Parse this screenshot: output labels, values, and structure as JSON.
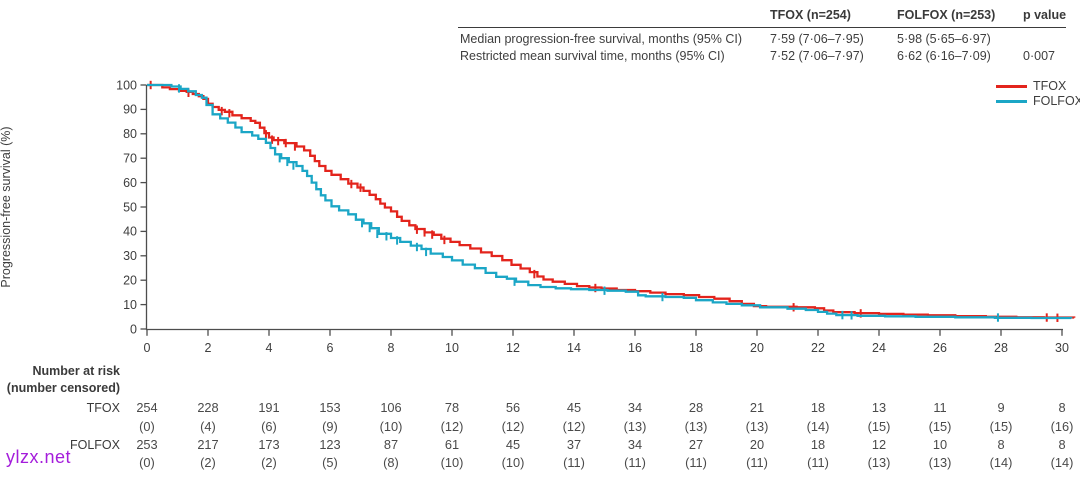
{
  "watermark": "ylzx.net",
  "colors": {
    "tfox": "#e3241c",
    "folfox": "#1ba6c6",
    "axis": "#4d4d4d",
    "text": "#3e3e3e",
    "watermark": "#a41ddb"
  },
  "stats_table": {
    "col_tfox": "TFOX (n=254)",
    "col_folfox": "FOLFOX (n=253)",
    "col_p": "p value",
    "rows": [
      {
        "label": "Median progression-free survival, months (95% CI)",
        "tfox": "7·59 (7·06–7·95)",
        "folfox": "5·98 (5·65–6·97)",
        "p": ""
      },
      {
        "label": "Restricted mean survival time, months (95% CI)",
        "tfox": "7·52 (7·06–7·97)",
        "folfox": "6·62 (6·16–7·09)",
        "p": "0·007"
      }
    ]
  },
  "legend": {
    "tfox_label": "TFOX",
    "folfox_label": "FOLFOX"
  },
  "chart_data": {
    "type": "line",
    "subtype": "kaplan-meier-step",
    "title": "",
    "xlabel": "",
    "ylabel": "Progression-free survival (%)",
    "xlim": [
      0,
      30
    ],
    "ylim": [
      0,
      100
    ],
    "x_ticks": [
      0,
      2,
      4,
      6,
      8,
      10,
      12,
      14,
      16,
      18,
      20,
      22,
      24,
      26,
      28,
      30
    ],
    "y_ticks": [
      0,
      10,
      20,
      30,
      40,
      50,
      60,
      70,
      80,
      90,
      100
    ],
    "grid": false,
    "legend_position": "top-right",
    "series": [
      {
        "name": "TFOX",
        "color": "#e3241c",
        "points": [
          [
            0,
            100
          ],
          [
            0.5,
            99
          ],
          [
            0.75,
            98.3
          ],
          [
            1.05,
            97.6
          ],
          [
            1.3,
            97.2
          ],
          [
            1.5,
            96.3
          ],
          [
            1.7,
            95.4
          ],
          [
            1.85,
            94.3
          ],
          [
            2.0,
            92.3
          ],
          [
            2.15,
            91
          ],
          [
            2.35,
            89.8
          ],
          [
            2.55,
            89
          ],
          [
            2.8,
            87.6
          ],
          [
            3.1,
            86.4
          ],
          [
            3.4,
            85.3
          ],
          [
            3.55,
            84.5
          ],
          [
            3.7,
            82.5
          ],
          [
            3.85,
            80.3
          ],
          [
            4.0,
            78.5
          ],
          [
            4.15,
            77.4
          ],
          [
            4.5,
            76.2
          ],
          [
            4.9,
            74.8
          ],
          [
            5.15,
            73.2
          ],
          [
            5.35,
            71
          ],
          [
            5.5,
            68.8
          ],
          [
            5.65,
            66.8
          ],
          [
            5.85,
            64.8
          ],
          [
            6.05,
            63.2
          ],
          [
            6.35,
            61.4
          ],
          [
            6.6,
            59.6
          ],
          [
            6.9,
            58
          ],
          [
            7.1,
            56.6
          ],
          [
            7.3,
            55
          ],
          [
            7.5,
            53.2
          ],
          [
            7.65,
            51.4
          ],
          [
            7.8,
            49.8
          ],
          [
            8.0,
            48.2
          ],
          [
            8.2,
            46
          ],
          [
            8.35,
            44.3
          ],
          [
            8.6,
            42.5
          ],
          [
            8.8,
            41
          ],
          [
            9.1,
            39.6
          ],
          [
            9.4,
            38.6
          ],
          [
            9.65,
            37
          ],
          [
            9.95,
            35.7
          ],
          [
            10.25,
            34.4
          ],
          [
            10.6,
            33
          ],
          [
            10.95,
            31.4
          ],
          [
            11.3,
            29.9
          ],
          [
            11.65,
            28.2
          ],
          [
            11.95,
            26.3
          ],
          [
            12.25,
            24.8
          ],
          [
            12.55,
            23.3
          ],
          [
            12.8,
            21.5
          ],
          [
            13.0,
            20.3
          ],
          [
            13.3,
            19.4
          ],
          [
            13.7,
            18.5
          ],
          [
            14.1,
            17.6
          ],
          [
            14.5,
            17
          ],
          [
            14.9,
            16.6
          ],
          [
            15.4,
            16
          ],
          [
            16.0,
            15.5
          ],
          [
            16.5,
            14.9
          ],
          [
            17.0,
            14.3
          ],
          [
            17.6,
            13.9
          ],
          [
            18.1,
            13.1
          ],
          [
            18.6,
            12.4
          ],
          [
            19.1,
            11.4
          ],
          [
            19.5,
            10.3
          ],
          [
            19.9,
            9.4
          ],
          [
            20.3,
            9.1
          ],
          [
            21.3,
            8.9
          ],
          [
            21.9,
            8.5
          ],
          [
            22.2,
            7.6
          ],
          [
            22.5,
            6.9
          ],
          [
            23.2,
            6.5
          ],
          [
            24.0,
            6.2
          ],
          [
            24.8,
            5.9
          ],
          [
            25.6,
            5.6
          ],
          [
            26.5,
            5.3
          ],
          [
            27.5,
            5.0
          ],
          [
            28.5,
            4.8
          ],
          [
            29.4,
            4.7
          ],
          [
            30.4,
            4.6
          ]
        ],
        "censors": [
          [
            0.12,
            100
          ],
          [
            1.36,
            96.8
          ],
          [
            2.45,
            89.3
          ],
          [
            2.7,
            88.4
          ],
          [
            3.9,
            79.8
          ],
          [
            4.1,
            77.6
          ],
          [
            4.3,
            77
          ],
          [
            4.55,
            76.2
          ],
          [
            4.85,
            74.8
          ],
          [
            6.7,
            59.4
          ],
          [
            7.0,
            57.9
          ],
          [
            8.85,
            40.7
          ],
          [
            9.1,
            39.6
          ],
          [
            9.35,
            38.7
          ],
          [
            9.75,
            36.5
          ],
          [
            12.7,
            22.5
          ],
          [
            14.7,
            16.8
          ],
          [
            21.2,
            8.9
          ],
          [
            23.4,
            6.4
          ],
          [
            29.5,
            4.7
          ],
          [
            29.85,
            4.6
          ]
        ]
      },
      {
        "name": "FOLFOX",
        "color": "#1ba6c6",
        "points": [
          [
            0,
            100
          ],
          [
            0.8,
            99.4
          ],
          [
            1.1,
            98.4
          ],
          [
            1.35,
            97.4
          ],
          [
            1.6,
            95.9
          ],
          [
            1.8,
            94.8
          ],
          [
            1.95,
            91.8
          ],
          [
            2.15,
            88
          ],
          [
            2.4,
            86.3
          ],
          [
            2.65,
            84.6
          ],
          [
            2.9,
            82.6
          ],
          [
            3.1,
            80.7
          ],
          [
            3.45,
            79.3
          ],
          [
            3.65,
            77.9
          ],
          [
            3.9,
            76.3
          ],
          [
            4.05,
            74.2
          ],
          [
            4.2,
            71.6
          ],
          [
            4.4,
            70
          ],
          [
            4.65,
            68.4
          ],
          [
            4.9,
            66.8
          ],
          [
            5.1,
            64.8
          ],
          [
            5.25,
            62.7
          ],
          [
            5.4,
            60
          ],
          [
            5.55,
            57.3
          ],
          [
            5.7,
            54.8
          ],
          [
            5.85,
            52.7
          ],
          [
            6.05,
            50.3
          ],
          [
            6.3,
            48.6
          ],
          [
            6.6,
            47
          ],
          [
            6.85,
            44.8
          ],
          [
            7.1,
            43.3
          ],
          [
            7.35,
            41.3
          ],
          [
            7.6,
            39
          ],
          [
            8.0,
            37.3
          ],
          [
            8.3,
            35.7
          ],
          [
            8.65,
            34.2
          ],
          [
            9.0,
            32.8
          ],
          [
            9.3,
            30.9
          ],
          [
            9.7,
            29.5
          ],
          [
            10.0,
            28.1
          ],
          [
            10.35,
            26.4
          ],
          [
            10.75,
            24.9
          ],
          [
            11.1,
            23
          ],
          [
            11.45,
            21.4
          ],
          [
            11.8,
            20.6
          ],
          [
            12.1,
            19.4
          ],
          [
            12.5,
            18
          ],
          [
            12.9,
            17.2
          ],
          [
            13.4,
            16.7
          ],
          [
            13.9,
            16.3
          ],
          [
            14.5,
            16
          ],
          [
            15.1,
            15.7
          ],
          [
            15.7,
            15.3
          ],
          [
            16.1,
            13.8
          ],
          [
            16.35,
            13.4
          ],
          [
            17.0,
            13.1
          ],
          [
            17.6,
            12.8
          ],
          [
            18.0,
            11.8
          ],
          [
            18.55,
            10.9
          ],
          [
            19.0,
            10.3
          ],
          [
            19.5,
            9.7
          ],
          [
            20.1,
            8.9
          ],
          [
            21.0,
            8.3
          ],
          [
            21.6,
            7.8
          ],
          [
            22.0,
            7.0
          ],
          [
            22.3,
            6.3
          ],
          [
            22.6,
            5.7
          ],
          [
            23.3,
            5.4
          ],
          [
            24.2,
            5.2
          ],
          [
            25.2,
            5.0
          ],
          [
            26.5,
            4.8
          ],
          [
            27.8,
            4.6
          ],
          [
            29.0,
            4.5
          ],
          [
            30.3,
            4.4
          ]
        ],
        "censors": [
          [
            1.05,
            98.6
          ],
          [
            4.35,
            70
          ],
          [
            4.6,
            68.5
          ],
          [
            4.8,
            67
          ],
          [
            7.05,
            43.4
          ],
          [
            7.3,
            41.4
          ],
          [
            7.55,
            39
          ],
          [
            7.85,
            38
          ],
          [
            8.2,
            36.3
          ],
          [
            8.85,
            33.6
          ],
          [
            9.15,
            31.6
          ],
          [
            12.05,
            19.4
          ],
          [
            15.0,
            15.7
          ],
          [
            16.9,
            13.1
          ],
          [
            22.8,
            5.7
          ],
          [
            23.1,
            5.6
          ],
          [
            27.9,
            4.7
          ]
        ]
      }
    ]
  },
  "risk_table": {
    "title_line1": "Number at risk",
    "title_line2": "(number censored)",
    "rows": [
      {
        "label": "TFOX",
        "at_risk": [
          "254",
          "228",
          "191",
          "153",
          "106",
          "78",
          "56",
          "45",
          "34",
          "28",
          "21",
          "18",
          "13",
          "11",
          "9",
          "8"
        ],
        "censored": [
          "(0)",
          "(4)",
          "(6)",
          "(9)",
          "(10)",
          "(12)",
          "(12)",
          "(12)",
          "(13)",
          "(13)",
          "(13)",
          "(14)",
          "(15)",
          "(15)",
          "(15)",
          "(16)"
        ]
      },
      {
        "label": "FOLFOX",
        "at_risk": [
          "253",
          "217",
          "173",
          "123",
          "87",
          "61",
          "45",
          "37",
          "34",
          "27",
          "20",
          "18",
          "12",
          "10",
          "8",
          "8"
        ],
        "censored": [
          "(0)",
          "(2)",
          "(2)",
          "(5)",
          "(8)",
          "(10)",
          "(10)",
          "(11)",
          "(11)",
          "(11)",
          "(11)",
          "(11)",
          "(13)",
          "(13)",
          "(14)",
          "(14)"
        ]
      }
    ]
  }
}
